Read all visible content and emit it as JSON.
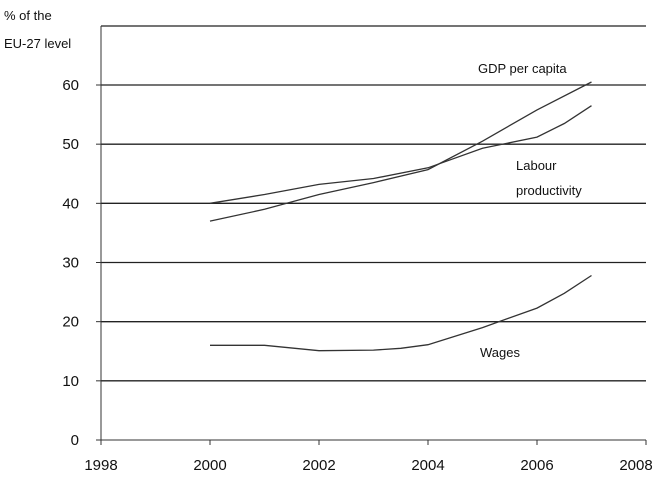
{
  "chart_data": {
    "type": "line",
    "ylabel_lines": [
      "% of the",
      "EU-27 level"
    ],
    "xlabel": "",
    "xlim": [
      1998,
      2008
    ],
    "ylim": [
      0,
      60
    ],
    "x_ticks": [
      1998,
      2000,
      2002,
      2004,
      2006,
      2008
    ],
    "y_ticks": [
      0,
      10,
      20,
      30,
      40,
      50,
      60
    ],
    "grid": "horizontal",
    "series": [
      {
        "name": "GDP per capita",
        "x": [
          2000,
          2001,
          2002,
          2003,
          2004,
          2005,
          2006,
          2007
        ],
        "y": [
          37,
          39,
          41.5,
          43.5,
          45.7,
          50.5,
          55.8,
          60.5
        ]
      },
      {
        "name": "Labour productivity",
        "x": [
          2000,
          2001,
          2002,
          2003,
          2004,
          2005,
          2006,
          2006.5,
          2007
        ],
        "y": [
          40,
          41.5,
          43.2,
          44.2,
          46,
          49.3,
          51.2,
          53.5,
          56.5
        ]
      },
      {
        "name": "Wages",
        "x": [
          2000,
          2001,
          2002,
          2003,
          2003.5,
          2004,
          2005,
          2006,
          2006.5,
          2007
        ],
        "y": [
          16,
          16,
          15.1,
          15.2,
          15.5,
          16.1,
          19,
          22.3,
          24.8,
          27.8
        ]
      }
    ],
    "series_labels": [
      {
        "lines": [
          "GDP per capita"
        ]
      },
      {
        "lines": [
          "Labour",
          "productivity"
        ]
      },
      {
        "lines": [
          "Wages"
        ]
      }
    ],
    "line_color": "#333333"
  }
}
